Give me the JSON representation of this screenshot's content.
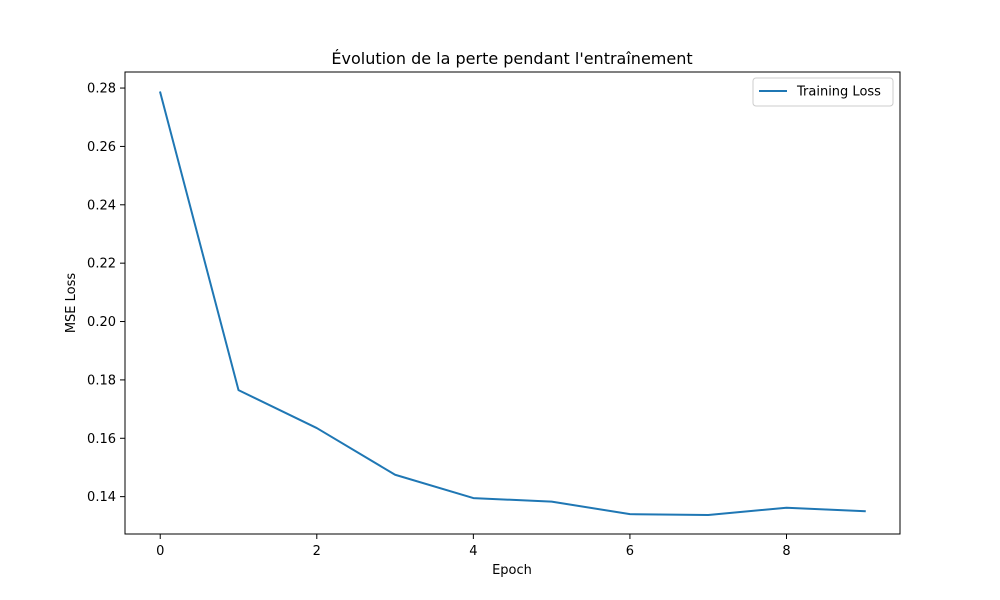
{
  "chart_data": {
    "type": "line",
    "title": "Évolution de la perte pendant l'entraînement",
    "xlabel": "Epoch",
    "ylabel": "MSE Loss",
    "x": [
      0,
      1,
      2,
      3,
      4,
      5,
      6,
      7,
      8,
      9
    ],
    "series": [
      {
        "name": "Training Loss",
        "color": "#1f77b4",
        "values": [
          0.2785,
          0.1765,
          0.1635,
          0.1475,
          0.1395,
          0.1383,
          0.134,
          0.1337,
          0.1362,
          0.135
        ]
      }
    ],
    "xlim": [
      -0.45,
      9.45
    ],
    "ylim": [
      0.1272,
      0.2855
    ],
    "xticks": [
      0,
      2,
      4,
      6,
      8
    ],
    "xtick_labels": [
      "0",
      "2",
      "4",
      "6",
      "8"
    ],
    "yticks": [
      0.14,
      0.16,
      0.18,
      0.2,
      0.22,
      0.24,
      0.26,
      0.28
    ],
    "ytick_labels": [
      "0.14",
      "0.16",
      "0.18",
      "0.20",
      "0.22",
      "0.24",
      "0.26",
      "0.28"
    ],
    "grid": false,
    "legend": "top-right"
  }
}
